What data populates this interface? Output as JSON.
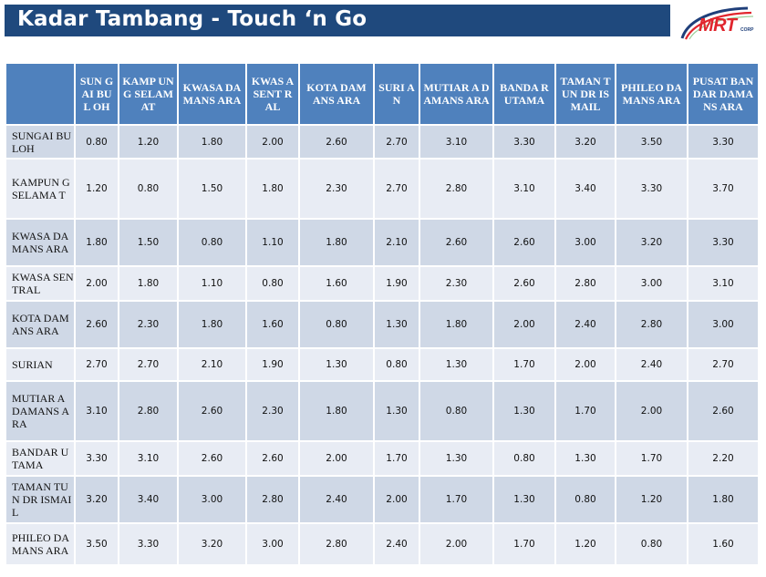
{
  "header": {
    "title": "Kadar Tambang - Touch ‘n Go",
    "logo_text": "MRT",
    "logo_sub": "CORP"
  },
  "colors": {
    "title_bar": "#1f497d",
    "table_header": "#4f81bd",
    "row_dark": "#cfd8e6",
    "row_light": "#e8ecf4",
    "logo_red": "#e0252d",
    "logo_blue": "#1f3f7a"
  },
  "table": {
    "columns": [
      "SUNGAI BULOH",
      "KAMPUNG SELAMAT",
      "KWASA DAMANSARA",
      "KWASA SENTRAL",
      "KOTA DAMANSARA",
      "SURIAN",
      "MUTIARA DAMANSARA",
      "BANDAR UTAMA",
      "TAMAN TUN DR ISMAIL",
      "PHILEO DAMANSARA",
      "PUSAT BANDAR DAMANSARA"
    ],
    "header_lines": [
      "SUN GAI BUL OH",
      "KAMP UNG SELAM AT",
      "KWASA DAMANS ARA",
      "KWAS A SENT RAL",
      "KOTA DAMANS ARA",
      "SURI AN",
      "MUTIAR A DAMANS ARA",
      "BANDA R UTAMA",
      "TAMAN TUN DR ISMAIL",
      "PHILEO DAMANS ARA",
      "PUSAT BANDAR DAMANS ARA"
    ],
    "rows": [
      {
        "station": "SUNGAI BULOH",
        "fares": [
          "0.80",
          "1.20",
          "1.80",
          "2.00",
          "2.60",
          "2.70",
          "3.10",
          "3.30",
          "3.20",
          "3.50",
          "3.30"
        ]
      },
      {
        "station": "KAMPUNG SELAMAT",
        "fares": [
          "1.20",
          "0.80",
          "1.50",
          "1.80",
          "2.30",
          "2.70",
          "2.80",
          "3.10",
          "3.40",
          "3.30",
          "3.70"
        ]
      },
      {
        "station": "KWASA DAMANSARA",
        "fares": [
          "1.80",
          "1.50",
          "0.80",
          "1.10",
          "1.80",
          "2.10",
          "2.60",
          "2.60",
          "3.00",
          "3.20",
          "3.30"
        ]
      },
      {
        "station": "KWASA SENTRAL",
        "fares": [
          "2.00",
          "1.80",
          "1.10",
          "0.80",
          "1.60",
          "1.90",
          "2.30",
          "2.60",
          "2.80",
          "3.00",
          "3.10"
        ]
      },
      {
        "station": "KOTA DAMANSARA",
        "fares": [
          "2.60",
          "2.30",
          "1.80",
          "1.60",
          "0.80",
          "1.30",
          "1.80",
          "2.00",
          "2.40",
          "2.80",
          "3.00"
        ]
      },
      {
        "station": "SURIAN",
        "fares": [
          "2.70",
          "2.70",
          "2.10",
          "1.90",
          "1.30",
          "0.80",
          "1.30",
          "1.70",
          "2.00",
          "2.40",
          "2.70"
        ]
      },
      {
        "station": "MUTIARA DAMANSARA",
        "fares": [
          "3.10",
          "2.80",
          "2.60",
          "2.30",
          "1.80",
          "1.30",
          "0.80",
          "1.30",
          "1.70",
          "2.00",
          "2.60"
        ]
      },
      {
        "station": "BANDAR UTAMA",
        "fares": [
          "3.30",
          "3.10",
          "2.60",
          "2.60",
          "2.00",
          "1.70",
          "1.30",
          "0.80",
          "1.30",
          "1.70",
          "2.20"
        ]
      },
      {
        "station": "TAMAN TUN DR ISMAIL",
        "fares": [
          "3.20",
          "3.40",
          "3.00",
          "2.80",
          "2.40",
          "2.00",
          "1.70",
          "1.30",
          "0.80",
          "1.20",
          "1.80"
        ]
      },
      {
        "station": "PHILEO DAMANSARA",
        "fares": [
          "3.50",
          "3.30",
          "3.20",
          "3.00",
          "2.80",
          "2.40",
          "2.00",
          "1.70",
          "1.20",
          "0.80",
          "1.60"
        ]
      }
    ],
    "row_labels_display": [
      "SUNGAI BULOH",
      "KAMPUN G SELAMA T",
      "KWASA DAMANS ARA",
      "KWASA SENTRAL",
      "KOTA DAMANS ARA",
      "SURIAN",
      "MUTIAR A DAMANS ARA",
      "BANDAR UTAMA",
      "TAMAN TUN DR ISMAIL",
      "PHILEO DAMANS ARA"
    ]
  }
}
